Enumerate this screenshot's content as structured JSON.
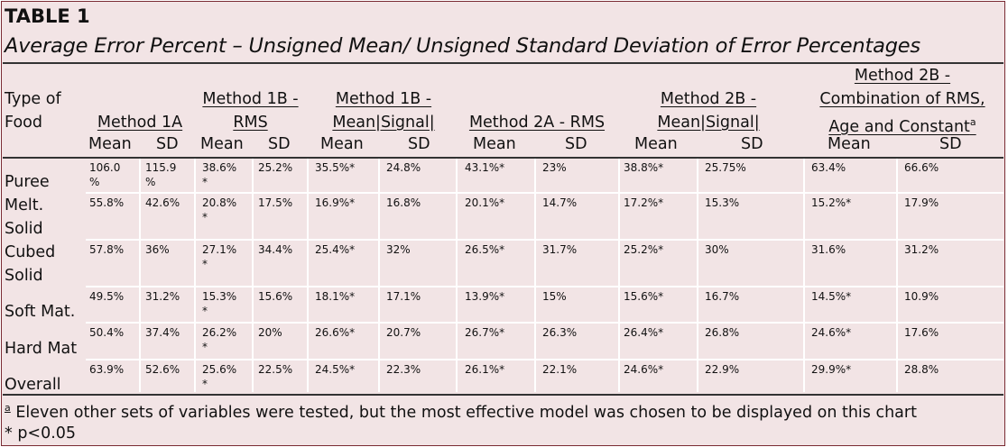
{
  "table": {
    "label": "TABLE 1",
    "caption": "Average Error Percent – Unsigned Mean/ Unsigned Standard Deviation of Error Percentages",
    "row_header": [
      "Type of",
      "Food"
    ],
    "methods": [
      {
        "lines": [
          "Method 1A"
        ]
      },
      {
        "lines": [
          "Method 1B -",
          "RMS"
        ]
      },
      {
        "lines": [
          "Method 1B -",
          "Mean|Signal|"
        ]
      },
      {
        "lines": [
          "Method 2A - RMS"
        ]
      },
      {
        "lines": [
          "Method 2B -",
          "Mean|Signal|"
        ]
      },
      {
        "lines": [
          "Method 2B -",
          "Combination of RMS,",
          "Age and Constant"
        ],
        "footnote_mark": "a"
      }
    ],
    "subheaders": [
      "Mean",
      "SD",
      "Mean",
      "SD",
      "Mean",
      "SD",
      "Mean",
      "SD",
      "Mean",
      "SD",
      "Mean",
      "SD"
    ],
    "rows": [
      {
        "food": [
          "Puree"
        ],
        "values": [
          "106.0\n%",
          "115.9\n%",
          "38.6%\n*",
          "25.2%",
          "35.5%*",
          "24.8%",
          "43.1%*",
          "23%",
          "38.8%*",
          "25.75%",
          "63.4%",
          "66.6%"
        ]
      },
      {
        "food": [
          "Melt.",
          "Solid"
        ],
        "values": [
          "55.8%",
          "42.6%",
          "20.8%\n*",
          "17.5%",
          "16.9%*",
          "16.8%",
          "20.1%*",
          "14.7%",
          "17.2%*",
          "15.3%",
          "15.2%*",
          "17.9%"
        ]
      },
      {
        "food": [
          "Cubed",
          "Solid"
        ],
        "values": [
          "57.8%",
          "36%",
          "27.1%\n*",
          "34.4%",
          "25.4%*",
          "32%",
          "26.5%*",
          "31.7%",
          "25.2%*",
          "30%",
          "31.6%",
          "31.2%"
        ]
      },
      {
        "food": [
          "Soft Mat."
        ],
        "values": [
          "49.5%",
          "31.2%",
          "15.3%\n*",
          "15.6%",
          "18.1%*",
          "17.1%",
          "13.9%*",
          "15%",
          "15.6%*",
          "16.7%",
          "14.5%*",
          "10.9%"
        ]
      },
      {
        "food": [
          "Hard Mat"
        ],
        "values": [
          "50.4%",
          "37.4%",
          "26.2%\n*",
          "20%",
          "26.6%*",
          "20.7%",
          "26.7%*",
          "26.3%",
          "26.4%*",
          "26.8%",
          "24.6%*",
          "17.6%"
        ]
      },
      {
        "food": [
          "Overall"
        ],
        "values": [
          "63.9%",
          "52.6%",
          "25.6%\n*",
          "22.5%",
          "24.5%*",
          "22.3%",
          "26.1%*",
          "22.1%",
          "24.6%*",
          "22.9%",
          "29.9%*",
          "28.8%"
        ]
      }
    ],
    "footnotes": {
      "a_mark": "a",
      "a_text": " Eleven other sets of variables were tested, but the most effective model was chosen to be displayed on this chart",
      "sig": "* p<0.05"
    }
  }
}
